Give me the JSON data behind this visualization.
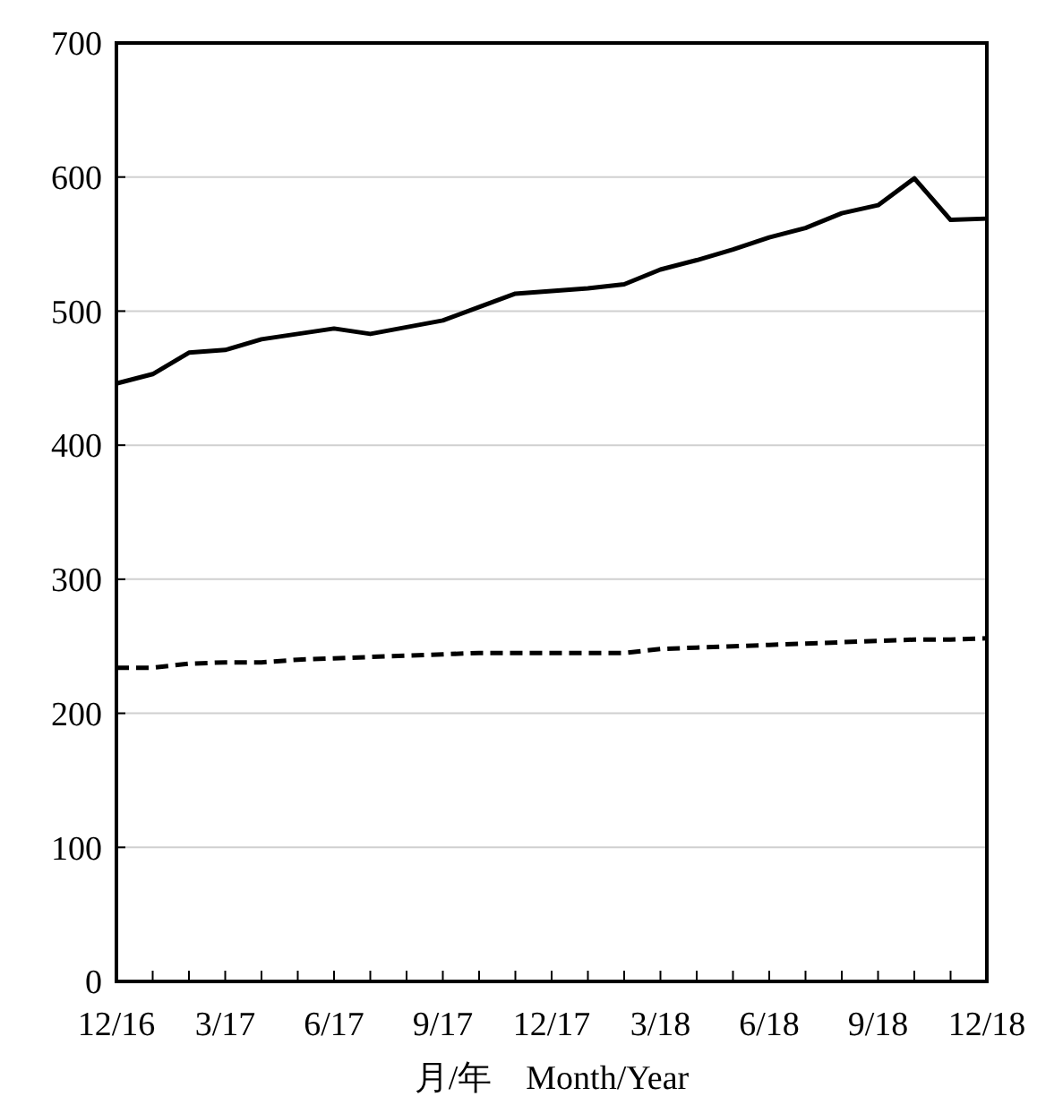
{
  "chart_data": {
    "type": "line",
    "xlabel": "月/年　Month/Year",
    "categories": [
      "12/16",
      null,
      null,
      "3/17",
      null,
      null,
      "6/17",
      null,
      null,
      "9/17",
      null,
      null,
      "12/17",
      null,
      null,
      "3/18",
      null,
      null,
      "6/18",
      null,
      null,
      "9/18",
      null,
      null,
      "12/18"
    ],
    "series": [
      {
        "color": "#000000",
        "line_style": "solid",
        "values": [
          446,
          453,
          469,
          471,
          479,
          483,
          487,
          483,
          488,
          493,
          503,
          513,
          515,
          517,
          520,
          531,
          538,
          546,
          555,
          562,
          573,
          579,
          599,
          568,
          569
        ]
      },
      {
        "color": "#000000",
        "line_style": "dashed",
        "values": [
          234,
          234,
          237,
          238,
          238,
          240,
          241,
          242,
          243,
          244,
          245,
          245,
          245,
          245,
          245,
          248,
          249,
          250,
          251,
          252,
          253,
          254,
          255,
          255,
          256
        ]
      }
    ],
    "ylim": [
      0,
      700
    ],
    "yticks": [
      0,
      100,
      200,
      300,
      400,
      500,
      600,
      700
    ],
    "grid": "y",
    "marker": "none"
  }
}
